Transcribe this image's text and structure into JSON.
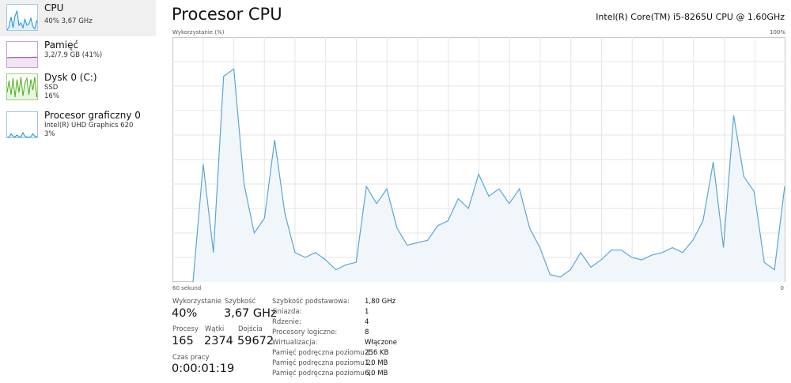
{
  "sidebar": {
    "items": [
      {
        "title": "CPU",
        "sub1": "40%  3,67 GHz",
        "sub2": "",
        "sub3": "",
        "color": "#1a8fd8",
        "selected": true,
        "spark": [
          0.0,
          0.15,
          0.55,
          0.1,
          0.6,
          0.8,
          0.2,
          0.3,
          0.1,
          0.45,
          0.2,
          0.25,
          0.5,
          0.15,
          0.05,
          0.4,
          0.1
        ]
      },
      {
        "title": "Pamięć",
        "sub1": "3,2/7,9 GB (41%)",
        "sub2": "",
        "sub3": "",
        "color": "#8b2d9a",
        "selected": false,
        "spark": [
          0.4,
          0.4,
          0.41,
          0.41,
          0.41,
          0.41,
          0.41,
          0.41,
          0.41,
          0.41,
          0.41,
          0.41,
          0.41,
          0.42,
          0.42,
          0.42,
          0.42
        ]
      },
      {
        "title": "Dysk 0 (C:)",
        "sub1": "SSD",
        "sub2": "16%",
        "sub3": "",
        "color": "#4caf1a",
        "selected": false,
        "spark": [
          0.3,
          0.8,
          0.2,
          0.9,
          0.1,
          0.85,
          0.3,
          0.95,
          0.15,
          0.7,
          0.9,
          0.2,
          0.85,
          0.4,
          0.95,
          0.1,
          0.6
        ]
      },
      {
        "title": "Procesor graficzny 0",
        "sub1": "Intel(R) UHD Graphics 620",
        "sub2": "3%",
        "sub3": "",
        "color": "#1a8fd8",
        "selected": false,
        "spark": [
          0.0,
          0.02,
          0.15,
          0.05,
          0.02,
          0.1,
          0.03,
          0.02,
          0.2,
          0.05,
          0.02,
          0.01,
          0.03,
          0.15,
          0.05,
          0.02,
          0.1
        ]
      }
    ]
  },
  "header": {
    "title": "Procesor CPU",
    "model": "Intel(R) Core(TM) i5-8265U CPU @ 1.60GHz"
  },
  "graph": {
    "y_label": "Wykorzystanie (%)",
    "y_max_label": "100%",
    "x_label": "60 sekund",
    "x_min_label": "0",
    "line_color": "#5aa6d6",
    "fill_color": "#f1f6fb",
    "grid_color": "#e6e6e6"
  },
  "chart_data": {
    "type": "area",
    "ylim": [
      0,
      100
    ],
    "xlim": [
      60,
      0
    ],
    "values": [
      0,
      48,
      12,
      84,
      87,
      40,
      20,
      26,
      58,
      28,
      12,
      10,
      12,
      9,
      5,
      7,
      8,
      39,
      32,
      38,
      22,
      15,
      16,
      17,
      23,
      25,
      34,
      30,
      44,
      35,
      38,
      32,
      38,
      22,
      14,
      3,
      2,
      5,
      12,
      6,
      9,
      13,
      13,
      10,
      9,
      11,
      12,
      14,
      12,
      17,
      25,
      49,
      14,
      68,
      43,
      37,
      8,
      5,
      39
    ],
    "grid": true
  },
  "stats": {
    "usage_label": "Wykorzystanie",
    "usage_value": "40%",
    "speed_label": "Szybkość",
    "speed_value": "3,67 GHz",
    "processes_label": "Procesy",
    "processes_value": "165",
    "threads_label": "Wątki",
    "threads_value": "2374",
    "handles_label": "Dojścia",
    "handles_value": "59672",
    "uptime_label": "Czas pracy",
    "uptime_value": "0:00:01:19"
  },
  "info": [
    {
      "label": "Szybkość podstawowa:",
      "value": "1,80 GHz"
    },
    {
      "label": "Gniazda:",
      "value": "1"
    },
    {
      "label": "Rdzenie:",
      "value": "4"
    },
    {
      "label": "Procesory logiczne:",
      "value": "8"
    },
    {
      "label": "Wirtualizacja:",
      "value": "Włączone"
    },
    {
      "label": "Pamięć podręczna poziomu 1:",
      "value": "256 KB"
    },
    {
      "label": "Pamięć podręczna poziomu 2:",
      "value": "1,0 MB"
    },
    {
      "label": "Pamięć podręczna poziomu 3:",
      "value": "6,0 MB"
    }
  ]
}
